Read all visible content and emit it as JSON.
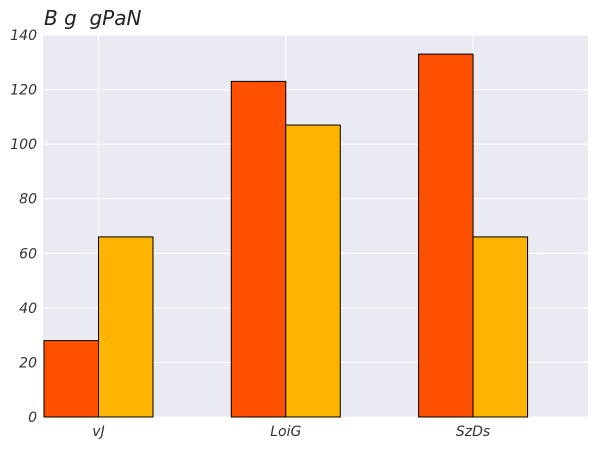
{
  "chart_data": {
    "type": "bar",
    "title": "B g  gPaN",
    "categories": [
      "vJ",
      "LoiG",
      "SzDs"
    ],
    "series": [
      {
        "values": [
          28,
          123,
          133
        ],
        "color": "#ff5000"
      },
      {
        "values": [
          66,
          107,
          66
        ],
        "color": "#ffb400"
      }
    ],
    "xlabel": "",
    "ylabel": "",
    "ylim": [
      0,
      140
    ],
    "yticks": [
      0,
      20,
      40,
      60,
      80,
      100,
      120,
      140
    ],
    "grid": true,
    "background": "#eaeaf2"
  }
}
